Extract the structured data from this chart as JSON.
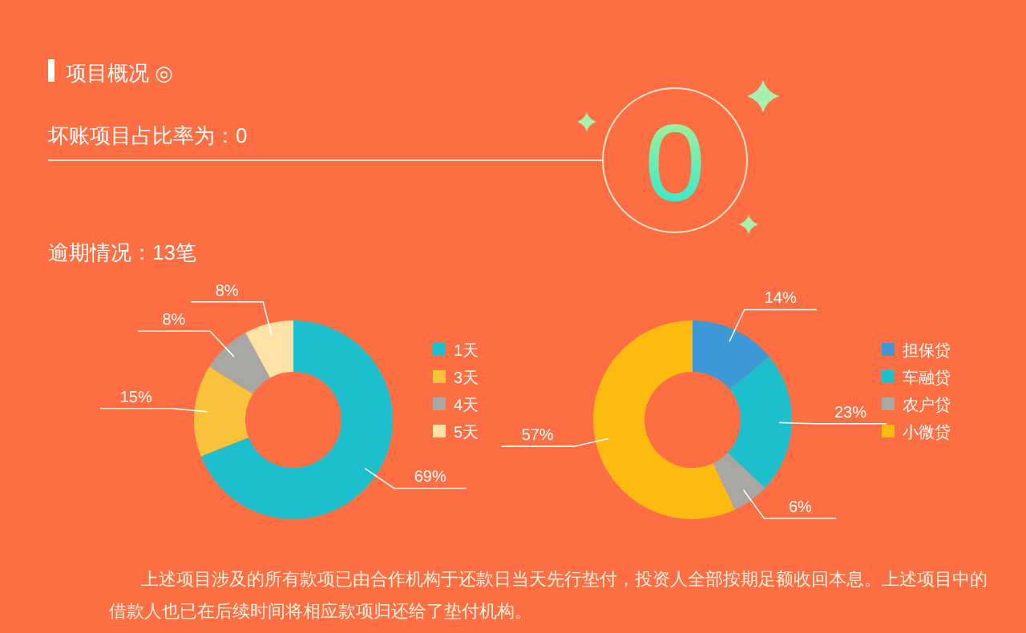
{
  "chart_data": [
    {
      "type": "donut",
      "title": "项目概况 ◎",
      "annotations": [
        "坏账项目占比率为：0",
        "0",
        "逾期情况：13笔"
      ],
      "categories": [
        "1天",
        "3天",
        "4天",
        "5天"
      ],
      "values": [
        69,
        15,
        8,
        8
      ],
      "value_labels": [
        "69%",
        "15%",
        "8%",
        "8%"
      ],
      "colors": [
        "#1ebfcc",
        "#f8c33a",
        "#a9a7a4",
        "#fde2a6"
      ],
      "legend": "right"
    },
    {
      "type": "donut",
      "annotations": [
        "上述项目涉及的所有款项已由合作机构于还款日当天先行垫付，投资人全部按期足额收回本息。上述项目中的借款人也已在后续时间将相应款项归还给了垫付机构。"
      ],
      "categories": [
        "担保贷",
        "车融贷",
        "农户贷",
        "小微贷"
      ],
      "values": [
        14,
        23,
        6,
        57
      ],
      "value_labels": [
        "14%",
        "23%",
        "6%",
        "57%"
      ],
      "colors": [
        "#3d98d6",
        "#1ebfcc",
        "#a9a7a4",
        "#fdbb12"
      ],
      "legend": "right"
    }
  ]
}
